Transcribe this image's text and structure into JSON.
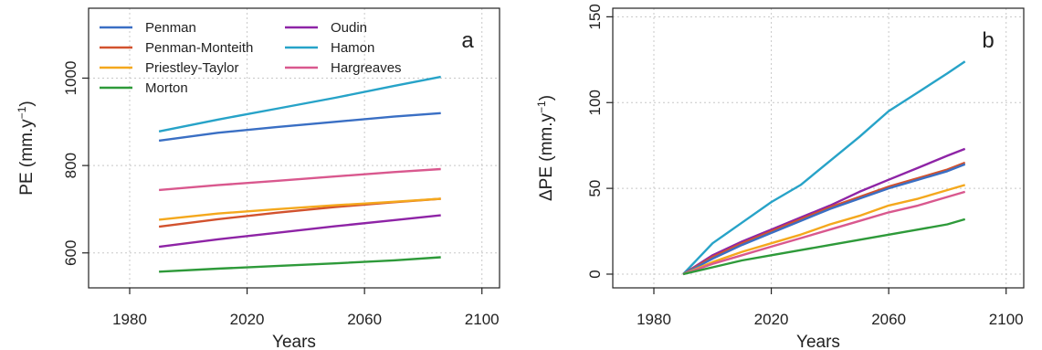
{
  "chart_data": [
    {
      "type": "line",
      "panel_label": "a",
      "xlabel": "Years",
      "ylabel": "PE (mm.y",
      "ylabel_sup": "−1",
      "ylabel_close": ")",
      "xlim": [
        1966,
        2106
      ],
      "ylim": [
        520,
        1160
      ],
      "xticks": [
        1980,
        2020,
        2060,
        2100
      ],
      "yticks": [
        600,
        800,
        1000
      ],
      "grid": true,
      "legend_position": "top-left",
      "series": [
        {
          "name": "Penman",
          "color": "#3A6FC4",
          "x": [
            1990,
            2010,
            2030,
            2050,
            2070,
            2086
          ],
          "values": [
            857,
            875,
            888,
            900,
            912,
            920
          ]
        },
        {
          "name": "Penman-Monteith",
          "color": "#D2522E",
          "x": [
            1990,
            2010,
            2030,
            2050,
            2070,
            2086
          ],
          "values": [
            660,
            677,
            692,
            705,
            716,
            724
          ]
        },
        {
          "name": "Priestley-Taylor",
          "color": "#F4A81D",
          "x": [
            1990,
            2010,
            2030,
            2050,
            2070,
            2086
          ],
          "values": [
            676,
            690,
            700,
            709,
            717,
            724
          ]
        },
        {
          "name": "Morton",
          "color": "#2E9A3A",
          "x": [
            1990,
            2010,
            2030,
            2050,
            2070,
            2086
          ],
          "values": [
            557,
            564,
            570,
            576,
            583,
            590
          ]
        },
        {
          "name": "Oudin",
          "color": "#8E24A6",
          "x": [
            1990,
            2010,
            2030,
            2050,
            2070,
            2086
          ],
          "values": [
            614,
            631,
            646,
            661,
            675,
            686
          ]
        },
        {
          "name": "Hamon",
          "color": "#27A3C8",
          "x": [
            1990,
            2010,
            2030,
            2050,
            2070,
            2086
          ],
          "values": [
            878,
            905,
            930,
            955,
            982,
            1003
          ]
        },
        {
          "name": "Hargreaves",
          "color": "#D9588E",
          "x": [
            1990,
            2010,
            2030,
            2050,
            2070,
            2086
          ],
          "values": [
            744,
            755,
            765,
            775,
            785,
            792
          ]
        }
      ]
    },
    {
      "type": "line",
      "panel_label": "b",
      "xlabel": "Years",
      "ylabel": "ΔPE (mm.y",
      "ylabel_sup": "−1",
      "ylabel_close": ")",
      "xlim": [
        1966,
        2106
      ],
      "ylim": [
        -8,
        155
      ],
      "xticks": [
        1980,
        2020,
        2060,
        2100
      ],
      "yticks": [
        0,
        50,
        100,
        150
      ],
      "grid": true,
      "series": [
        {
          "name": "Hamon",
          "color": "#27A3C8",
          "x": [
            1990,
            2000,
            2010,
            2020,
            2030,
            2040,
            2050,
            2060,
            2070,
            2080,
            2086
          ],
          "values": [
            0,
            18,
            30,
            42,
            52,
            66,
            80,
            95,
            106,
            117,
            124
          ]
        },
        {
          "name": "Oudin",
          "color": "#8E24A6",
          "x": [
            1990,
            2000,
            2010,
            2020,
            2030,
            2040,
            2050,
            2060,
            2070,
            2080,
            2086
          ],
          "values": [
            0,
            11,
            19,
            26,
            33,
            40,
            48,
            55,
            62,
            69,
            73
          ]
        },
        {
          "name": "Penman-Monteith",
          "color": "#D2522E",
          "x": [
            1990,
            2000,
            2010,
            2020,
            2030,
            2040,
            2050,
            2060,
            2070,
            2080,
            2086
          ],
          "values": [
            0,
            10,
            18,
            25,
            32,
            39,
            45,
            51,
            56,
            61,
            65
          ]
        },
        {
          "name": "Penman",
          "color": "#3A6FC4",
          "x": [
            1990,
            2000,
            2010,
            2020,
            2030,
            2040,
            2050,
            2060,
            2070,
            2080,
            2086
          ],
          "values": [
            0,
            9,
            17,
            24,
            31,
            38,
            44,
            50,
            55,
            60,
            64
          ]
        },
        {
          "name": "Priestley-Taylor",
          "color": "#F4A81D",
          "x": [
            1990,
            2000,
            2010,
            2020,
            2030,
            2040,
            2050,
            2060,
            2070,
            2080,
            2086
          ],
          "values": [
            0,
            7,
            13,
            18,
            23,
            29,
            34,
            40,
            44,
            49,
            52
          ]
        },
        {
          "name": "Hargreaves",
          "color": "#D9588E",
          "x": [
            1990,
            2000,
            2010,
            2020,
            2030,
            2040,
            2050,
            2060,
            2070,
            2080,
            2086
          ],
          "values": [
            0,
            6,
            11,
            16,
            21,
            26,
            31,
            36,
            40,
            45,
            48
          ]
        },
        {
          "name": "Morton",
          "color": "#2E9A3A",
          "x": [
            1990,
            2000,
            2010,
            2020,
            2030,
            2040,
            2050,
            2060,
            2070,
            2080,
            2086
          ],
          "values": [
            0,
            4,
            8,
            11,
            14,
            17,
            20,
            23,
            26,
            29,
            32
          ]
        }
      ]
    }
  ]
}
